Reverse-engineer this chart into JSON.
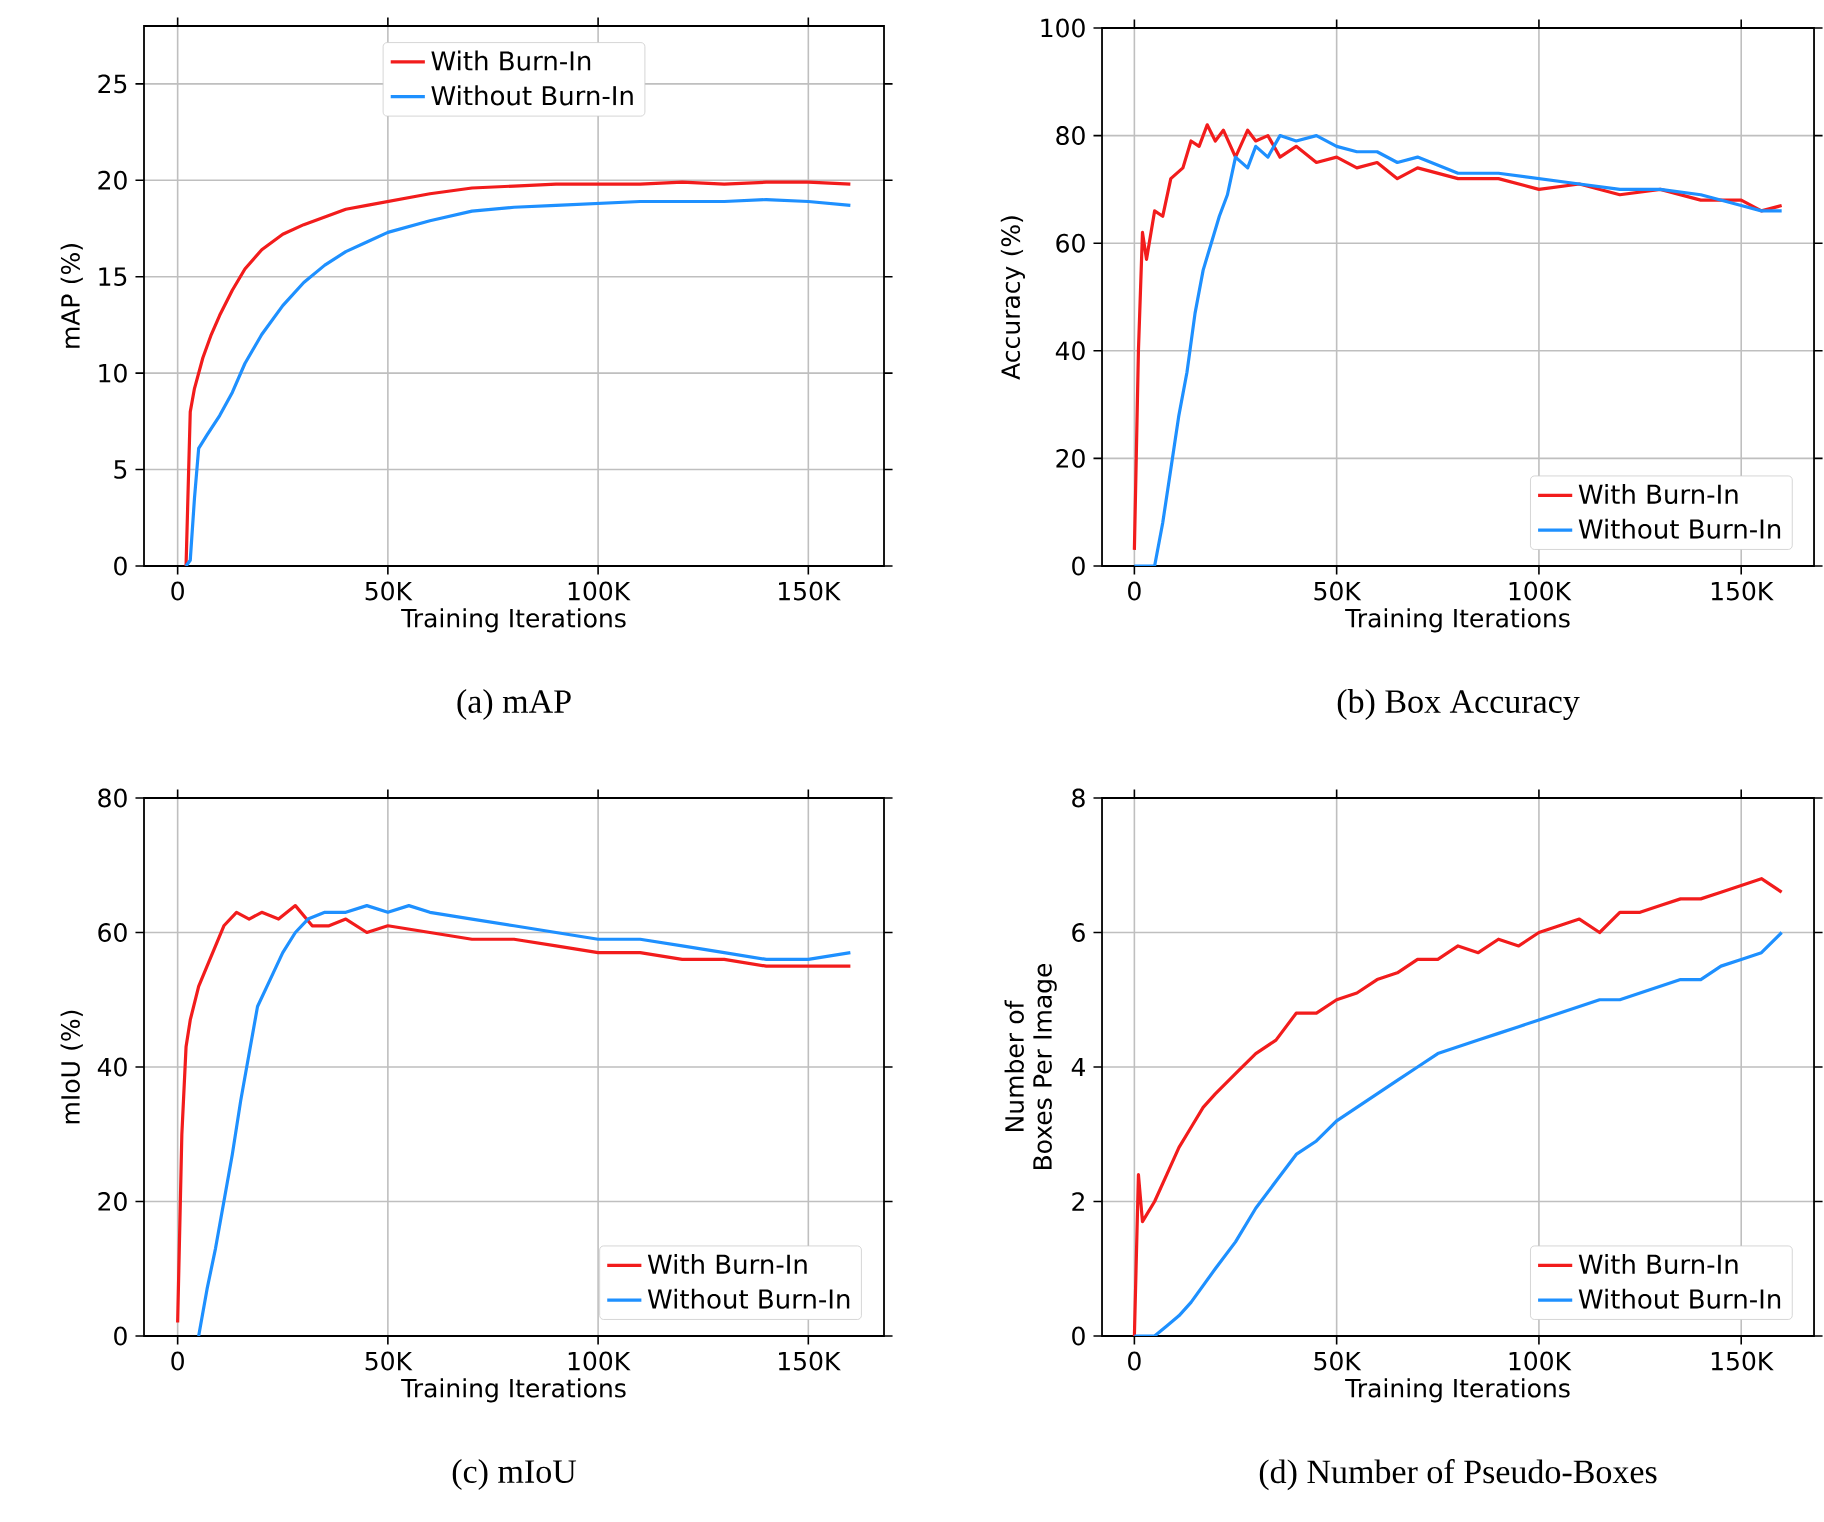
{
  "chart_data": [
    {
      "type": "line",
      "xlabel": "Training Iterations",
      "ylabel": "mAP (%)",
      "annotations": [
        "(a) mAP"
      ],
      "xlim": [
        -8000,
        168000
      ],
      "ylim": [
        0,
        28
      ],
      "xticks": [
        0,
        {
          "value": 50000,
          "label": "50K"
        },
        {
          "value": 100000,
          "label": "100K"
        },
        {
          "value": 150000,
          "label": "150K"
        }
      ],
      "yticks": [
        0,
        5,
        10,
        15,
        20,
        25
      ],
      "grid": true,
      "legend": "top",
      "line_style": "solid",
      "marker": "none",
      "series": [
        {
          "name": "With Burn-In",
          "color": "#f21c1c",
          "x": [
            2000,
            3000,
            4000,
            6000,
            8000,
            10000,
            13000,
            16000,
            20000,
            25000,
            30000,
            35000,
            40000,
            45000,
            50000,
            55000,
            60000,
            70000,
            80000,
            90000,
            100000,
            110000,
            120000,
            130000,
            140000,
            150000,
            160000
          ],
          "values": [
            0,
            8,
            9.2,
            10.8,
            12,
            13,
            14.3,
            15.4,
            16.4,
            17.2,
            17.7,
            18.1,
            18.5,
            18.7,
            18.9,
            19.1,
            19.3,
            19.6,
            19.7,
            19.8,
            19.8,
            19.8,
            19.9,
            19.8,
            19.9,
            19.9,
            19.8
          ]
        },
        {
          "name": "Without Burn-In",
          "color": "#1e90ff",
          "x": [
            2000,
            3000,
            4000,
            5000,
            7000,
            10000,
            13000,
            16000,
            20000,
            25000,
            30000,
            35000,
            40000,
            45000,
            50000,
            55000,
            60000,
            70000,
            80000,
            90000,
            100000,
            110000,
            120000,
            130000,
            140000,
            150000,
            160000
          ],
          "values": [
            0,
            0.3,
            3.5,
            6.1,
            6.8,
            7.8,
            9,
            10.5,
            12,
            13.5,
            14.7,
            15.6,
            16.3,
            16.8,
            17.3,
            17.6,
            17.9,
            18.4,
            18.6,
            18.7,
            18.8,
            18.9,
            18.9,
            18.9,
            19.0,
            18.9,
            18.7
          ]
        }
      ]
    },
    {
      "type": "line",
      "xlabel": "Training Iterations",
      "ylabel": "Accuracy (%)",
      "annotations": [
        "(b) Box Accuracy"
      ],
      "xlim": [
        -8000,
        168000
      ],
      "ylim": [
        0,
        100
      ],
      "xticks": [
        0,
        {
          "value": 50000,
          "label": "50K"
        },
        {
          "value": 100000,
          "label": "100K"
        },
        {
          "value": 150000,
          "label": "150K"
        }
      ],
      "yticks": [
        0,
        20,
        40,
        60,
        80,
        100
      ],
      "grid": true,
      "legend": "bottom right",
      "line_style": "solid",
      "marker": "none",
      "series": [
        {
          "name": "With Burn-In",
          "color": "#f21c1c",
          "x": [
            0,
            1000,
            2000,
            3000,
            5000,
            7000,
            9000,
            12000,
            14000,
            16000,
            18000,
            20000,
            22000,
            25000,
            28000,
            30000,
            33000,
            36000,
            40000,
            45000,
            50000,
            55000,
            60000,
            65000,
            70000,
            80000,
            90000,
            100000,
            110000,
            120000,
            130000,
            140000,
            150000,
            155000,
            160000
          ],
          "values": [
            3,
            40,
            62,
            57,
            66,
            65,
            72,
            74,
            79,
            78,
            82,
            79,
            81,
            76,
            81,
            79,
            80,
            76,
            78,
            75,
            76,
            74,
            75,
            72,
            74,
            72,
            72,
            70,
            71,
            69,
            70,
            68,
            68,
            66,
            67
          ]
        },
        {
          "name": "Without Burn-In",
          "color": "#1e90ff",
          "x": [
            0,
            3000,
            5000,
            7000,
            9000,
            11000,
            13000,
            15000,
            17000,
            19000,
            21000,
            23000,
            25000,
            28000,
            30000,
            33000,
            36000,
            40000,
            45000,
            50000,
            55000,
            60000,
            65000,
            70000,
            80000,
            90000,
            100000,
            110000,
            120000,
            130000,
            140000,
            150000,
            155000,
            160000
          ],
          "values": [
            0,
            0,
            0,
            8,
            18,
            28,
            36,
            47,
            55,
            60,
            65,
            69,
            76,
            74,
            78,
            76,
            80,
            79,
            80,
            78,
            77,
            77,
            75,
            76,
            73,
            73,
            72,
            71,
            70,
            70,
            69,
            67,
            66,
            66
          ]
        }
      ]
    },
    {
      "type": "line",
      "xlabel": "Training Iterations",
      "ylabel": "mIoU (%)",
      "annotations": [
        "(c) mIoU"
      ],
      "xlim": [
        -8000,
        168000
      ],
      "ylim": [
        0,
        80
      ],
      "xticks": [
        0,
        {
          "value": 50000,
          "label": "50K"
        },
        {
          "value": 100000,
          "label": "100K"
        },
        {
          "value": 150000,
          "label": "150K"
        }
      ],
      "yticks": [
        0,
        20,
        40,
        60,
        80
      ],
      "grid": true,
      "legend": "bottom right",
      "line_style": "solid",
      "marker": "none",
      "series": [
        {
          "name": "With Burn-In",
          "color": "#f21c1c",
          "x": [
            0,
            1000,
            2000,
            3000,
            5000,
            7000,
            9000,
            11000,
            14000,
            17000,
            20000,
            24000,
            28000,
            32000,
            36000,
            40000,
            45000,
            50000,
            60000,
            70000,
            80000,
            90000,
            100000,
            110000,
            120000,
            130000,
            140000,
            150000,
            160000
          ],
          "values": [
            2,
            30,
            43,
            47,
            52,
            55,
            58,
            61,
            63,
            62,
            63,
            62,
            64,
            61,
            61,
            62,
            60,
            61,
            60,
            59,
            59,
            58,
            57,
            57,
            56,
            56,
            55,
            55,
            55
          ]
        },
        {
          "name": "Without Burn-In",
          "color": "#1e90ff",
          "x": [
            5000,
            7000,
            9000,
            11000,
            13000,
            15000,
            17000,
            19000,
            22000,
            25000,
            28000,
            31000,
            35000,
            40000,
            45000,
            50000,
            55000,
            60000,
            70000,
            80000,
            90000,
            100000,
            110000,
            120000,
            130000,
            140000,
            150000,
            160000
          ],
          "values": [
            0,
            7,
            13,
            20,
            27,
            35,
            42,
            49,
            53,
            57,
            60,
            62,
            63,
            63,
            64,
            63,
            64,
            63,
            62,
            61,
            60,
            59,
            59,
            58,
            57,
            56,
            56,
            57
          ]
        }
      ]
    },
    {
      "type": "line",
      "xlabel": "Training Iterations",
      "ylabel": "Number of Boxes Per Image",
      "annotations": [
        "(d) Number of Pseudo-Boxes"
      ],
      "xlim": [
        -8000,
        168000
      ],
      "ylim": [
        0,
        8
      ],
      "xticks": [
        0,
        {
          "value": 50000,
          "label": "50K"
        },
        {
          "value": 100000,
          "label": "100K"
        },
        {
          "value": 150000,
          "label": "150K"
        }
      ],
      "yticks": [
        0,
        2,
        4,
        6,
        8
      ],
      "grid": true,
      "legend": "bottom right",
      "line_style": "solid",
      "marker": "none",
      "series": [
        {
          "name": "With Burn-In",
          "color": "#f21c1c",
          "x": [
            0,
            1000,
            2000,
            3000,
            5000,
            8000,
            11000,
            14000,
            17000,
            20000,
            25000,
            30000,
            35000,
            40000,
            45000,
            50000,
            55000,
            60000,
            65000,
            70000,
            75000,
            80000,
            85000,
            90000,
            95000,
            100000,
            105000,
            110000,
            115000,
            120000,
            125000,
            130000,
            135000,
            140000,
            145000,
            150000,
            155000,
            160000
          ],
          "values": [
            0,
            2.4,
            1.7,
            1.8,
            2.0,
            2.4,
            2.8,
            3.1,
            3.4,
            3.6,
            3.9,
            4.2,
            4.4,
            4.8,
            4.8,
            5.0,
            5.1,
            5.3,
            5.4,
            5.6,
            5.6,
            5.8,
            5.7,
            5.9,
            5.8,
            6.0,
            6.1,
            6.2,
            6.0,
            6.3,
            6.3,
            6.4,
            6.5,
            6.5,
            6.6,
            6.7,
            6.8,
            6.6
          ]
        },
        {
          "name": "Without Burn-In",
          "color": "#1e90ff",
          "x": [
            0,
            5000,
            8000,
            11000,
            14000,
            17000,
            20000,
            25000,
            30000,
            35000,
            40000,
            45000,
            50000,
            55000,
            60000,
            65000,
            70000,
            75000,
            80000,
            85000,
            90000,
            95000,
            100000,
            105000,
            110000,
            115000,
            120000,
            125000,
            130000,
            135000,
            140000,
            145000,
            150000,
            155000,
            160000
          ],
          "values": [
            0,
            0,
            0.15,
            0.3,
            0.5,
            0.75,
            1.0,
            1.4,
            1.9,
            2.3,
            2.7,
            2.9,
            3.2,
            3.4,
            3.6,
            3.8,
            4.0,
            4.2,
            4.3,
            4.4,
            4.5,
            4.6,
            4.7,
            4.8,
            4.9,
            5.0,
            5.0,
            5.1,
            5.2,
            5.3,
            5.3,
            5.5,
            5.6,
            5.7,
            6.0
          ]
        }
      ]
    }
  ]
}
